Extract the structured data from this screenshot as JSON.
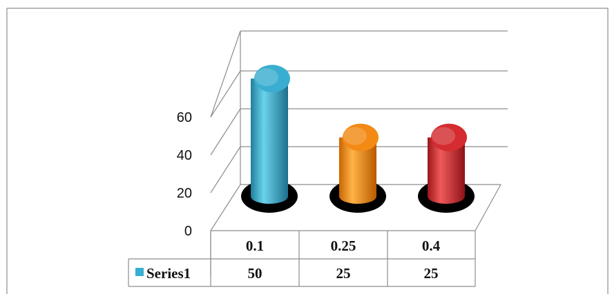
{
  "chart_data": {
    "type": "bar",
    "style": "3d-cylinder",
    "categories": [
      "0.1",
      "0.25",
      "0.4"
    ],
    "series": [
      {
        "name": "Series1",
        "values": [
          50,
          25,
          25
        ],
        "colors": [
          "#3aaed0",
          "#f28a14",
          "#d42c30"
        ]
      }
    ],
    "ylim": [
      0,
      60
    ],
    "yticks": [
      0,
      20,
      40,
      60
    ],
    "grid": true,
    "legend": "data-table",
    "legend_color": "#3aaed0",
    "data_table": true
  }
}
